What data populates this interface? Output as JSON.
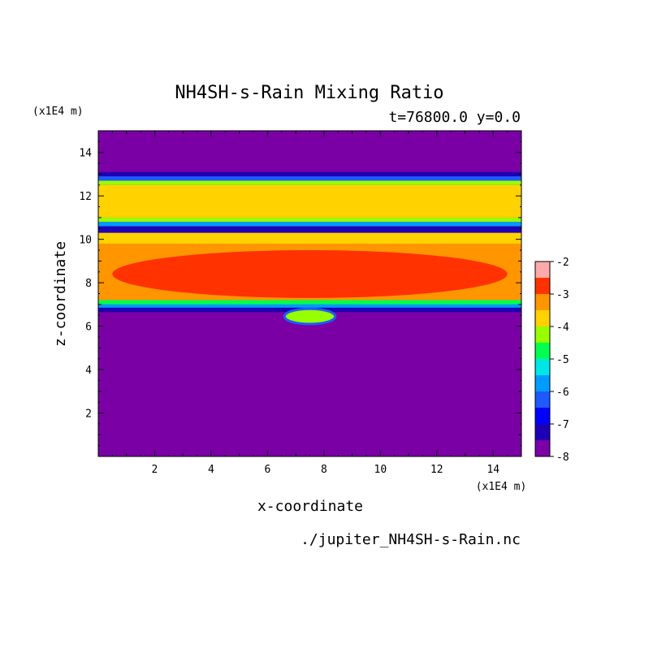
{
  "chart_data": {
    "type": "heatmap",
    "title": "NH4SH-s-Rain Mixing Ratio",
    "subtitle": "t=76800.0 y=0.0",
    "xlabel": "x-coordinate",
    "ylabel": "z-coordinate",
    "x_unit": "(x1E4 m)",
    "y_unit": "(x1E4 m)",
    "xlim": [
      0,
      15
    ],
    "ylim": [
      0,
      15
    ],
    "x_ticks": [
      2,
      4,
      6,
      8,
      10,
      12,
      14
    ],
    "y_ticks": [
      2,
      4,
      6,
      8,
      10,
      12,
      14
    ],
    "colorbar": {
      "levels": [
        -8,
        -7.5,
        -7,
        -6.5,
        -6,
        -5.5,
        -5,
        -4.5,
        -4,
        -3.5,
        -3,
        -2.5,
        -2
      ],
      "labels": [
        "-8",
        "-7",
        "-6",
        "-5",
        "-4",
        "-3",
        "-2"
      ],
      "colors": [
        "#7a00a6",
        "#1e00b4",
        "#0000ff",
        "#1e5aff",
        "#009bff",
        "#00e6e6",
        "#00ff50",
        "#96ff00",
        "#ffd200",
        "#ff9600",
        "#ff3200",
        "#ffaaaa"
      ]
    },
    "bands": [
      {
        "z_bottom": 12.9,
        "z_top": 13.1,
        "value": -7.2
      },
      {
        "z_bottom": 12.7,
        "z_top": 12.9,
        "value": -6.2
      },
      {
        "z_bottom": 12.5,
        "z_top": 12.7,
        "value": -4.3
      },
      {
        "z_bottom": 11.0,
        "z_top": 12.5,
        "value": -3.8
      },
      {
        "z_bottom": 10.8,
        "z_top": 11.0,
        "value": -4.3
      },
      {
        "z_bottom": 10.6,
        "z_top": 10.8,
        "value": -5.7
      },
      {
        "z_bottom": 10.3,
        "z_top": 10.6,
        "value": -7.5
      },
      {
        "z_bottom": 9.8,
        "z_top": 10.3,
        "value": -3.8
      },
      {
        "z_bottom": 7.2,
        "z_top": 9.8,
        "value": -3.3
      },
      {
        "z_bottom": 7.0,
        "z_top": 7.2,
        "value": -4.7
      },
      {
        "z_bottom": 6.85,
        "z_top": 7.0,
        "value": -5.8
      },
      {
        "z_bottom": 6.65,
        "z_top": 6.85,
        "value": -7.2
      }
    ],
    "core": {
      "x_center": 7.5,
      "z_center": 8.4,
      "x_half_width": 7.0,
      "z_half_height": 1.1,
      "value": -2.8
    },
    "bubble": {
      "x_center": 7.5,
      "z_center": 6.45,
      "x_half_width": 0.9,
      "z_half_height": 0.35,
      "value": -4.2
    },
    "background_value": -8
  },
  "footer": {
    "source_file": "./jupiter_NH4SH-s-Rain.nc"
  }
}
